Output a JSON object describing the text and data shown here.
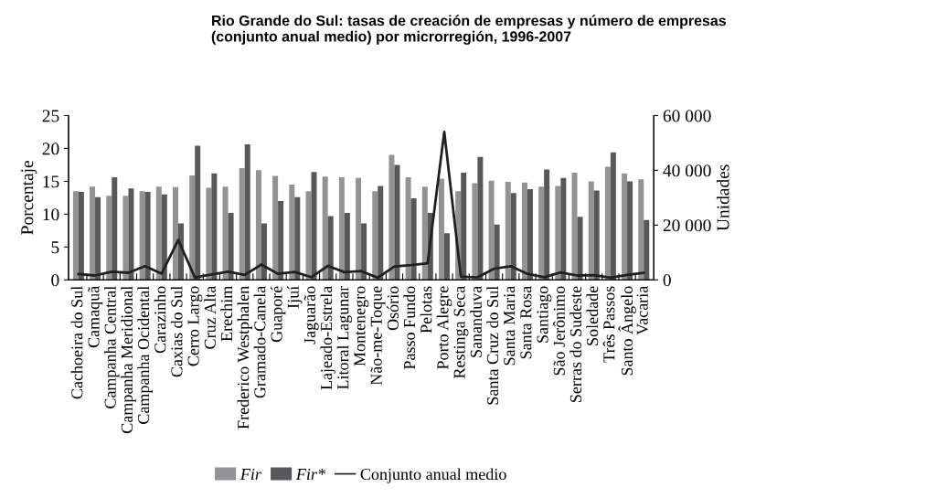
{
  "chart_data": {
    "type": "bar",
    "title": "Rio Grande do Sul: tasas de creación de empresas y número de empresas\n(conjunto anual medio) por microrregión, 1996-2007",
    "ylabel": "Porcentaje",
    "y2label": "Unidades",
    "categories": [
      "Cachoeira do Sul",
      "Camaquã",
      "Campanha Central",
      "Campanha Meridional",
      "Campanha Ocidental",
      "Carazinho",
      "Caxias do Sul",
      "Cerro Largo",
      "Cruz Alta",
      "Erechim",
      "Frederico Westphalen",
      "Gramado-Canela",
      "Guaporé",
      "Ijuí",
      "Jaguarão",
      "Lajeado-Estrela",
      "Litoral Lagunar",
      "Montenegro",
      "Não-me-Toque",
      "Osório",
      "Passo Fundo",
      "Pelotas",
      "Porto Alegre",
      "Restinga Seca",
      "Sananduva",
      "Santa Cruz do Sul",
      "Santa Maria",
      "Santa Rosa",
      "Santiago",
      "São Jerônimo",
      "Serras do Sudeste",
      "Soledade",
      "Três Passos",
      "Santo Ângelo",
      "Vacaria"
    ],
    "series": [
      {
        "name": "Fir",
        "color": "#939396",
        "values": [
          13.5,
          14.2,
          12.8,
          12.8,
          13.5,
          14.2,
          14.1,
          15.9,
          14.0,
          14.2,
          17.0,
          16.7,
          15.8,
          14.5,
          13.5,
          15.7,
          15.6,
          15.5,
          13.5,
          19.0,
          15.6,
          14.2,
          15.4,
          13.5,
          14.7,
          15.1,
          14.9,
          14.8,
          14.2,
          14.3,
          16.3,
          15.0,
          17.2,
          16.2,
          15.3
        ]
      },
      {
        "name": "Fir*",
        "color": "#58585b",
        "values": [
          13.4,
          12.6,
          15.6,
          13.9,
          13.4,
          13.0,
          8.6,
          20.4,
          16.2,
          10.2,
          20.6,
          8.6,
          12.0,
          12.6,
          16.4,
          9.7,
          10.2,
          8.6,
          14.3,
          17.5,
          12.4,
          10.2,
          7.1,
          16.3,
          18.7,
          8.4,
          13.2,
          13.8,
          16.8,
          15.5,
          9.6,
          13.6,
          19.4,
          15.0,
          9.1
        ]
      },
      {
        "name": "Conjunto anual medio",
        "type": "line",
        "axis": "y2",
        "color": "#231f20",
        "values": [
          2100,
          1600,
          3000,
          2600,
          5000,
          2300,
          14600,
          900,
          2000,
          3000,
          1800,
          5600,
          2200,
          2900,
          1000,
          5100,
          2800,
          3200,
          800,
          4900,
          5400,
          6100,
          54000,
          1200,
          900,
          4100,
          5000,
          2200,
          1000,
          2700,
          1600,
          1700,
          800,
          1800,
          2600
        ]
      }
    ],
    "ylim": [
      0,
      25
    ],
    "yticks": [
      0,
      5,
      10,
      15,
      20,
      25
    ],
    "y2lim": [
      0,
      60000
    ],
    "y2ticks": [
      {
        "value": 0,
        "label": "0"
      },
      {
        "value": 20000,
        "label": "20 000"
      },
      {
        "value": 40000,
        "label": "40 000"
      },
      {
        "value": 60000,
        "label": "60 000"
      }
    ],
    "legend": "bottom",
    "grid": false,
    "marker": "none",
    "line_style": "solid"
  }
}
